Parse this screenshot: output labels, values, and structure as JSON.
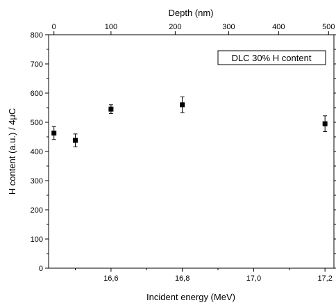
{
  "chart_data": {
    "type": "scatter",
    "xlabel": "Incident energy (MeV)",
    "ylabel": "H content (a.u.) / 4μC",
    "top_xlabel": "Depth (nm)",
    "xlim": [
      16.425,
      17.225
    ],
    "ylim": [
      0,
      800
    ],
    "x_ticks": [
      {
        "value": 16.6,
        "label": "16,6"
      },
      {
        "value": 16.8,
        "label": "16,8"
      },
      {
        "value": 17.0,
        "label": "17,0"
      },
      {
        "value": 17.2,
        "label": "17,2"
      }
    ],
    "y_ticks": [
      0,
      100,
      200,
      300,
      400,
      500,
      600,
      700,
      800
    ],
    "top_ticks": [
      {
        "energy": 16.44,
        "label": "0"
      },
      {
        "energy": 16.6,
        "label": "100"
      },
      {
        "energy": 16.78,
        "label": "200"
      },
      {
        "energy": 16.93,
        "label": "300"
      },
      {
        "energy": 17.07,
        "label": "400"
      },
      {
        "energy": 17.21,
        "label": "500"
      }
    ],
    "legend": "DLC 30% H content",
    "legend_position": "top-right",
    "grid": false,
    "points": [
      {
        "x": 16.44,
        "y": 463,
        "err": 22
      },
      {
        "x": 16.5,
        "y": 438,
        "err": 22
      },
      {
        "x": 16.6,
        "y": 545,
        "err": 15
      },
      {
        "x": 16.8,
        "y": 560,
        "err": 27
      },
      {
        "x": 17.2,
        "y": 495,
        "err": 27
      }
    ],
    "marker": "square",
    "color": "#000000"
  }
}
